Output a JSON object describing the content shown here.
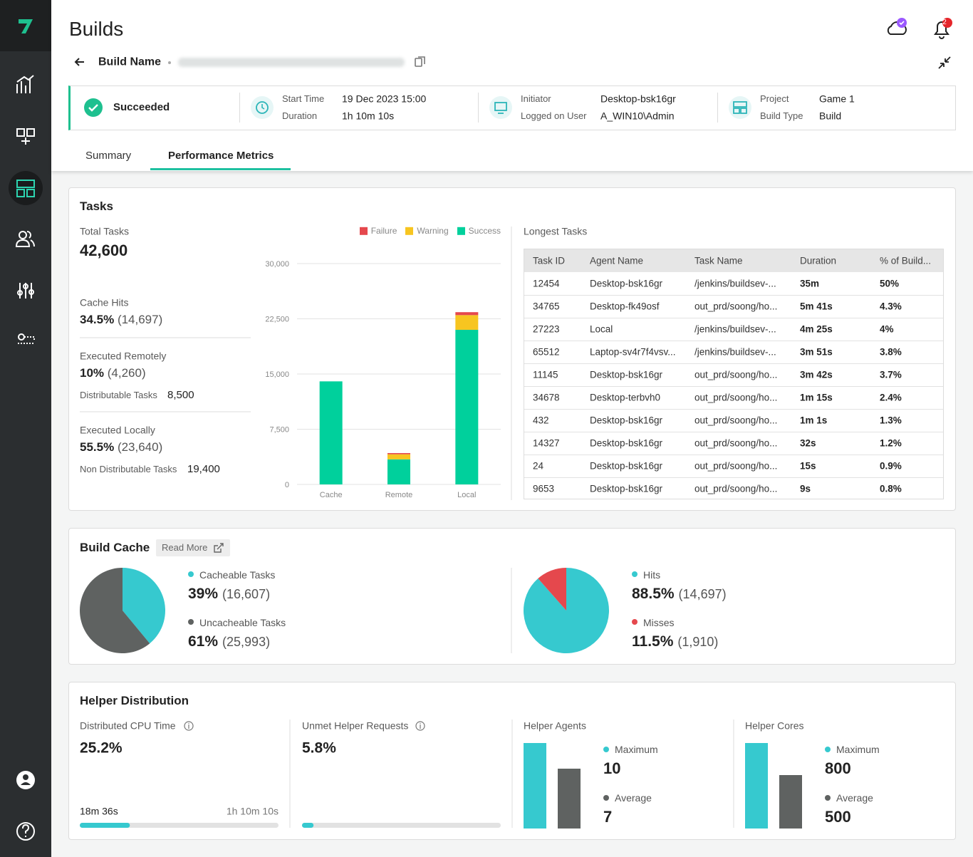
{
  "header": {
    "title": "Builds",
    "build_name_label": "Build Name",
    "notification_count": 2
  },
  "build_info": {
    "status": "Succeeded",
    "start_time_label": "Start Time",
    "start_time": "19 Dec 2023 15:00",
    "duration_label": "Duration",
    "duration": "1h 10m 10s",
    "initiator_label": "Initiator",
    "initiator": "Desktop-bsk16gr",
    "logged_on_user_label": "Logged on User",
    "logged_on_user": "A_WIN10\\Admin",
    "project_label": "Project",
    "project": "Game 1",
    "build_type_label": "Build Type",
    "build_type": "Build"
  },
  "tabs": [
    "Summary",
    "Performance Metrics"
  ],
  "tasks": {
    "title": "Tasks",
    "total_label": "Total Tasks",
    "total": "42,600",
    "stats": [
      {
        "label": "Cache Hits",
        "percent": "34.5%",
        "count": "(14,697)"
      },
      {
        "label": "Executed Remotely",
        "percent": "10%",
        "count": "(4,260)",
        "sub_label": "Distributable Tasks",
        "sub_value": "8,500"
      },
      {
        "label": "Executed Locally",
        "percent": "55.5%",
        "count": "(23,640)",
        "sub_label": "Non Distributable Tasks",
        "sub_value": "19,400"
      }
    ],
    "chart": {
      "type": "bar",
      "stacked": true,
      "categories": [
        "Cache",
        "Remote",
        "Local"
      ],
      "series": [
        {
          "name": "Failure",
          "color": "#e5484d",
          "values": [
            0,
            160,
            400
          ]
        },
        {
          "name": "Warning",
          "color": "#f7c520",
          "values": [
            0,
            700,
            2000
          ]
        },
        {
          "name": "Success",
          "color": "#00d09c",
          "values": [
            14000,
            3400,
            21000
          ]
        }
      ],
      "ylim": [
        0,
        30000
      ],
      "yticks": [
        0,
        {
          "value": 7500,
          "label": "7,500"
        },
        {
          "value": 15000,
          "label": "15,000"
        },
        {
          "value": 22500,
          "label": "22,500"
        },
        {
          "value": 30000,
          "label": "30,000"
        }
      ],
      "grid": true
    },
    "longest_tasks": {
      "title": "Longest Tasks",
      "columns": [
        "Task ID",
        "Agent Name",
        "Task Name",
        "Duration",
        "% of Build..."
      ],
      "rows": [
        [
          "12454",
          "Desktop-bsk16gr",
          "/jenkins/buildsev-...",
          "35m",
          "50%"
        ],
        [
          "34765",
          "Desktop-fk49osf",
          "out_prd/soong/ho...",
          "5m 41s",
          "4.3%"
        ],
        [
          "27223",
          "Local",
          "/jenkins/buildsev-...",
          "4m 25s",
          "4%"
        ],
        [
          "65512",
          "Laptop-sv4r7f4vsv...",
          "/jenkins/buildsev-...",
          "3m 51s",
          "3.8%"
        ],
        [
          "11145",
          "Desktop-bsk16gr",
          "out_prd/soong/ho...",
          "3m 42s",
          "3.7%"
        ],
        [
          "34678",
          "Desktop-terbvh0",
          "out_prd/soong/ho...",
          "1m 15s",
          "2.4%"
        ],
        [
          "432",
          "Desktop-bsk16gr",
          "out_prd/soong/ho...",
          "1m 1s",
          "1.3%"
        ],
        [
          "14327",
          "Desktop-bsk16gr",
          "out_prd/soong/ho...",
          "32s",
          "1.2%"
        ],
        [
          "24",
          "Desktop-bsk16gr",
          "out_prd/soong/ho...",
          "15s",
          "0.9%"
        ],
        [
          "9653",
          "Desktop-bsk16gr",
          "out_prd/soong/ho...",
          "9s",
          "0.8%"
        ]
      ]
    }
  },
  "build_cache": {
    "title": "Build Cache",
    "read_more": "Read More",
    "charts": [
      {
        "type": "pie",
        "categories": [
          "Cacheable Tasks",
          "Uncacheable Tasks"
        ],
        "values": [
          39,
          61
        ],
        "value_labels": [
          "39%",
          "61%"
        ],
        "count_labels": [
          "(16,607)",
          "(25,993)"
        ],
        "colors": [
          "#36c9cf",
          "#5f6261"
        ]
      },
      {
        "type": "pie",
        "categories": [
          "Hits",
          "Misses"
        ],
        "values": [
          88.5,
          11.5
        ],
        "value_labels": [
          "88.5%",
          "11.5%"
        ],
        "count_labels": [
          "(14,697)",
          "(1,910)"
        ],
        "colors": [
          "#36c9cf",
          "#e5484d"
        ]
      }
    ]
  },
  "helper_distribution": {
    "title": "Helper Distribution",
    "cpu_time": {
      "label": "Distributed CPU Time",
      "value": 25.2,
      "value_label": "25.2%",
      "xlim": [
        0,
        100
      ],
      "start_label": "18m 36s",
      "end_label": "1h 10m 10s"
    },
    "unmet_requests": {
      "label": "Unmet Helper Requests",
      "value": 5.8,
      "value_label": "5.8%",
      "xlim": [
        0,
        100
      ]
    },
    "agents": {
      "type": "bar",
      "title": "Helper Agents",
      "categories": [
        "Maximum",
        "Average"
      ],
      "values": [
        10,
        7
      ],
      "ylim": [
        0,
        10
      ],
      "colors": [
        "#36c9cf",
        "#5f6261"
      ]
    },
    "cores": {
      "type": "bar",
      "title": "Helper Cores",
      "categories": [
        "Maximum",
        "Average"
      ],
      "values": [
        800,
        500
      ],
      "ylim": [
        0,
        800
      ],
      "colors": [
        "#36c9cf",
        "#5f6261"
      ]
    }
  }
}
